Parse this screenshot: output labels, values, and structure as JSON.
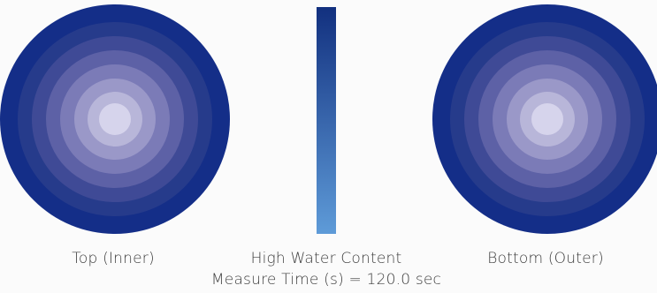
{
  "left_disc": {
    "label": "Top (Inner)",
    "ring_colors": [
      "#142e88",
      "#263b8b",
      "#3f4a96",
      "#5d61a6",
      "#7b7bb7",
      "#9a98c8",
      "#b8b6d9",
      "#d6d4ec"
    ]
  },
  "right_disc": {
    "label": "Bottom (Outer)",
    "ring_colors": [
      "#142e88",
      "#263b8b",
      "#3f4a96",
      "#5d61a6",
      "#7b7bb7",
      "#9a98c8",
      "#b8b6d9",
      "#d6d4ec"
    ]
  },
  "center": {
    "title": "High Water Content",
    "measure": "Measure Time (s) = 120.0 sec",
    "gradient_top": "#12307f",
    "gradient_bottom": "#5e9bd8"
  }
}
